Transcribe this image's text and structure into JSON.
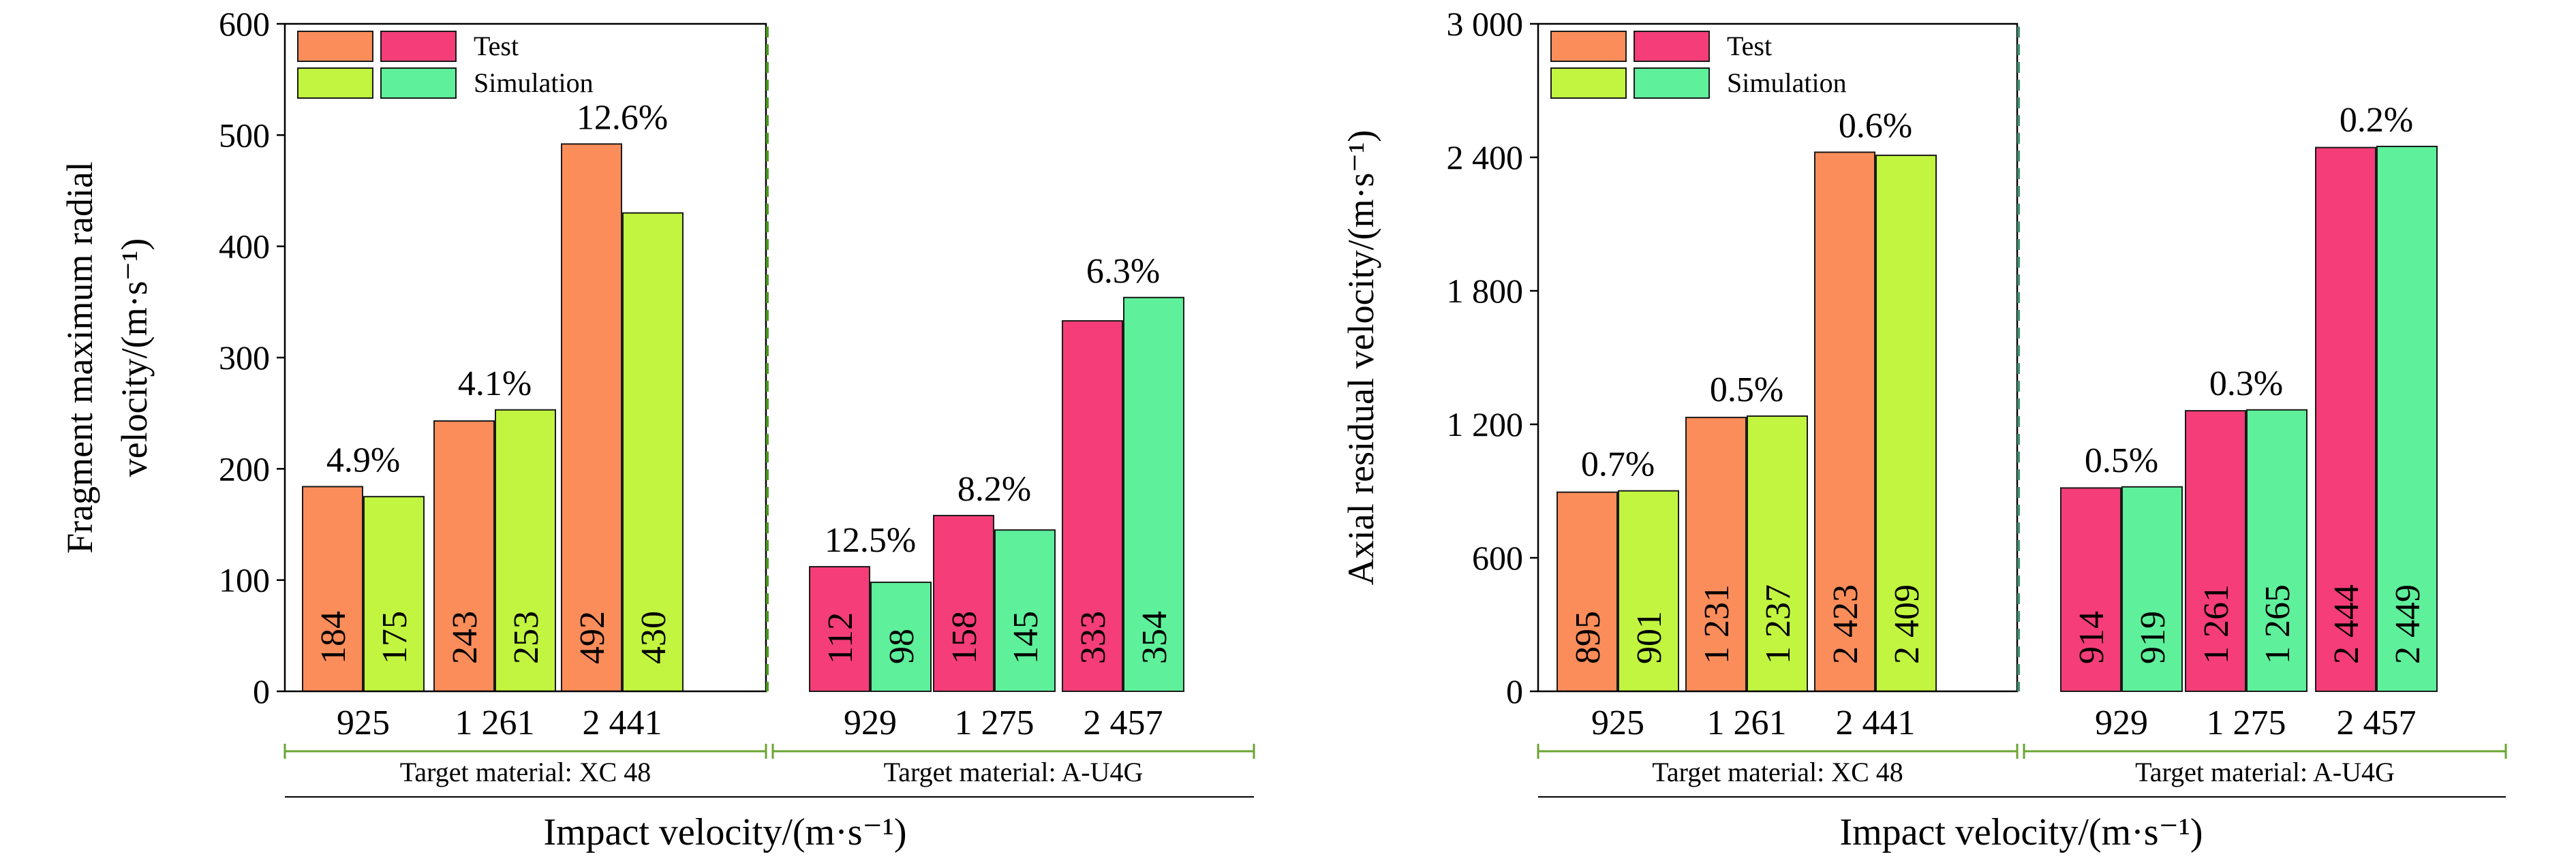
{
  "colors": {
    "xc48_test": "#FA8D5A",
    "xc48_sim": "#C1F53F",
    "au4g_test": "#F43D79",
    "au4g_sim": "#5EF09A",
    "divider_left": "#4C9A1E",
    "divider_right": "#3E8F6E",
    "bracket": "#6AA532"
  },
  "legend": {
    "test": "Test",
    "simulation": "Simulation"
  },
  "chart_data": [
    {
      "type": "bar",
      "ylabel_line1": "Fragment maximum radial",
      "ylabel_line2": "velocity/(m·s⁻¹)",
      "xlabel": "Impact velocity/(m·s⁻¹)",
      "ylim": [
        0,
        600
      ],
      "yticks": [
        "0",
        "100",
        "200",
        "300",
        "400",
        "500",
        "600"
      ],
      "groups": [
        {
          "label": "Target material: XC 48",
          "categories": [
            "925",
            "1 261",
            "2 441"
          ],
          "test": [
            184,
            243,
            492
          ],
          "simulation": [
            175,
            253,
            430
          ],
          "test_labels": [
            "184",
            "243",
            "492"
          ],
          "simulation_labels": [
            "175",
            "253",
            "430"
          ],
          "errors": [
            "4.9%",
            "4.1%",
            "12.6%"
          ]
        },
        {
          "label": "Target material: A-U4G",
          "categories": [
            "929",
            "1 275",
            "2 457"
          ],
          "test": [
            112,
            158,
            333
          ],
          "simulation": [
            98,
            145,
            354
          ],
          "test_labels": [
            "112",
            "158",
            "333"
          ],
          "simulation_labels": [
            "98",
            "145",
            "354"
          ],
          "errors": [
            "12.5%",
            "8.2%",
            "6.3%"
          ]
        }
      ]
    },
    {
      "type": "bar",
      "ylabel_line1": "Axial residual velocity/(m·s⁻¹)",
      "ylabel_line2": "",
      "xlabel": "Impact velocity/(m·s⁻¹)",
      "ylim": [
        0,
        3000
      ],
      "yticks": [
        "0",
        "600",
        "1 200",
        "1 800",
        "2 400",
        "3 000"
      ],
      "groups": [
        {
          "label": "Target material: XC 48",
          "categories": [
            "925",
            "1 261",
            "2 441"
          ],
          "test": [
            895,
            1231,
            2423
          ],
          "simulation": [
            901,
            1237,
            2409
          ],
          "test_labels": [
            "895",
            "1 231",
            "2 423"
          ],
          "simulation_labels": [
            "901",
            "1 237",
            "2 409"
          ],
          "errors": [
            "0.7%",
            "0.5%",
            "0.6%"
          ]
        },
        {
          "label": "Target material: A-U4G",
          "categories": [
            "929",
            "1 275",
            "2 457"
          ],
          "test": [
            914,
            1261,
            2444
          ],
          "simulation": [
            919,
            1265,
            2449
          ],
          "test_labels": [
            "914",
            "1 261",
            "2 444"
          ],
          "simulation_labels": [
            "919",
            "1 265",
            "2 449"
          ],
          "errors": [
            "0.5%",
            "0.3%",
            "0.2%"
          ]
        }
      ]
    }
  ]
}
